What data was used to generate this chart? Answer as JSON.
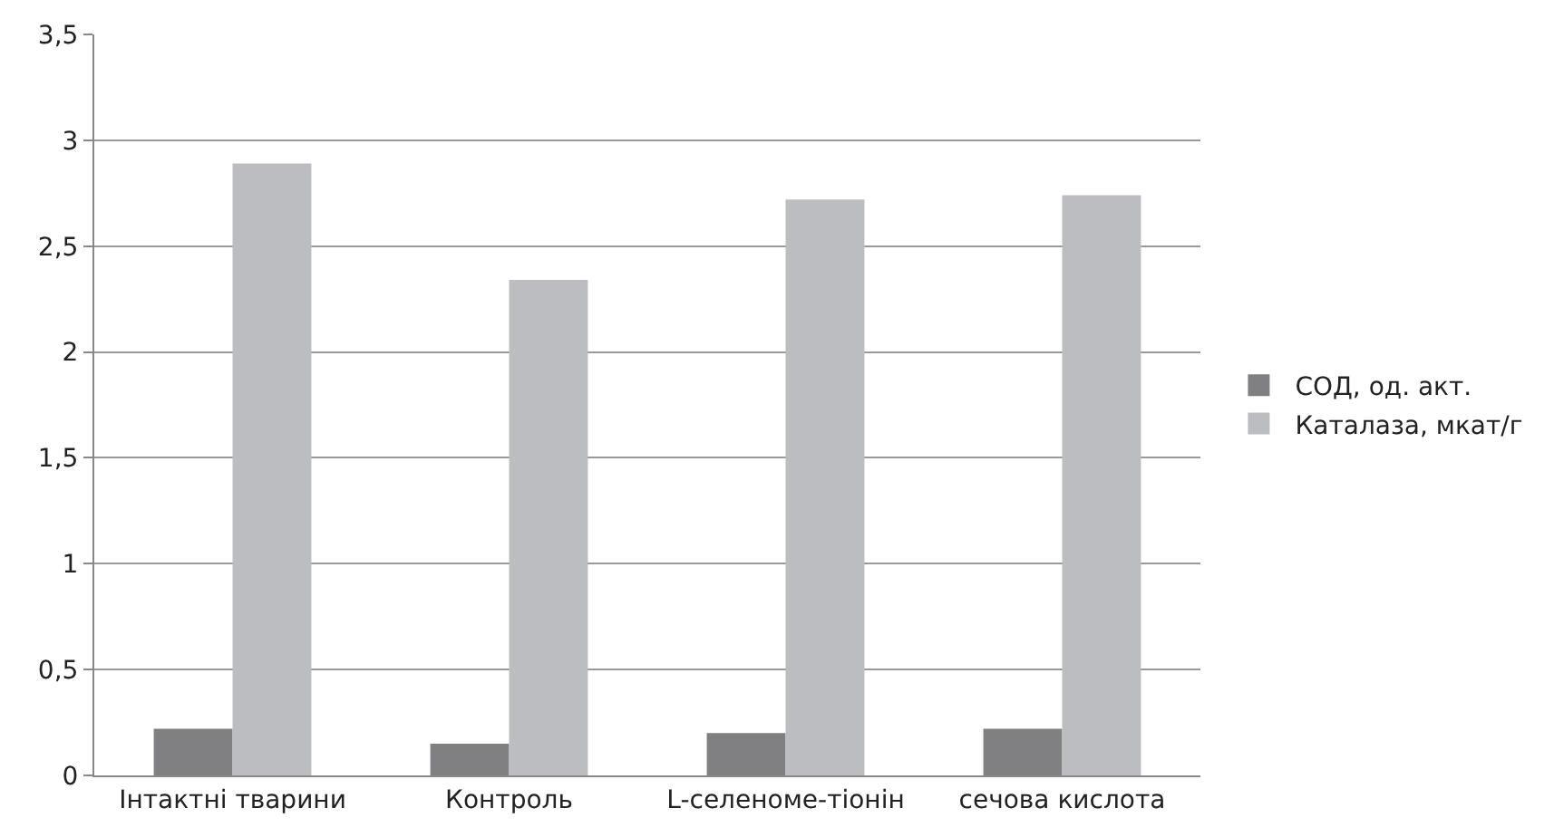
{
  "chart_data": {
    "type": "bar",
    "categories": [
      "Інтактні тварини",
      "Контроль",
      "L-селеноме-тіонін",
      "сечова кислота"
    ],
    "series": [
      {
        "name": "СОД, од. акт.",
        "color": "#808083",
        "values": [
          0.22,
          0.15,
          0.2,
          0.22
        ]
      },
      {
        "name": "Каталаза, мкат/г",
        "color": "#bcbdc1",
        "values": [
          2.89,
          2.34,
          2.72,
          2.74
        ]
      }
    ],
    "ylim": [
      0,
      3.5
    ],
    "yticks": [
      0,
      {
        "value": 0.5,
        "label": "0,5"
      },
      1,
      {
        "value": 1.5,
        "label": "1,5"
      },
      2,
      {
        "value": 2.5,
        "label": "2,5"
      },
      3,
      {
        "value": 3.5,
        "label": "3,5"
      }
    ],
    "grid": "y",
    "legend": "right"
  }
}
